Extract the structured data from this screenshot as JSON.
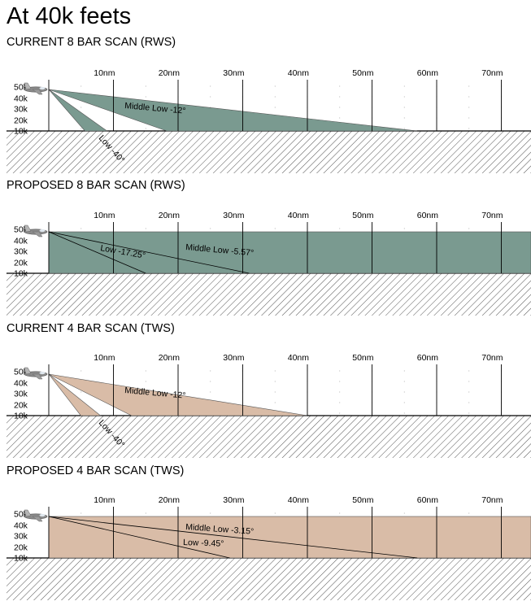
{
  "title": "At 40k feets",
  "distance_labels": [
    "10nm",
    "20nm",
    "30nm",
    "40nm",
    "50nm",
    "60nm",
    "70nm"
  ],
  "altitude_labels": [
    "50k",
    "40k",
    "30k",
    "20k",
    "10k"
  ],
  "colors": {
    "rws": "#7a9a90",
    "tws": "#d9bca7",
    "ground_hatch": "#555555"
  },
  "aircraft_icon": "fighter-jet-icon",
  "panels": [
    {
      "id": "current-8-bar-rws",
      "title": "CURRENT 8 BAR SCAN (RWS)",
      "mode": "rws",
      "kind": "wedges",
      "beams": [
        {
          "label": "Middle Low -12°",
          "ground_range_nm": 57
        },
        {
          "label": "Low -40°",
          "ground_range_nm": 9
        }
      ]
    },
    {
      "id": "proposed-8-bar-rws",
      "title": "PROPOSED 8 BAR SCAN (RWS)",
      "mode": "rws",
      "kind": "coverage",
      "beams": [
        {
          "label": "Middle Low -5.57°",
          "ground_range_nm": 31
        },
        {
          "label": "Low -17.25°",
          "ground_range_nm": 15
        }
      ]
    },
    {
      "id": "current-4-bar-tws",
      "title": "CURRENT 4 BAR SCAN (TWS)",
      "mode": "tws",
      "kind": "wedges",
      "beams": [
        {
          "label": "Middle Low -12°",
          "ground_range_nm": 40
        },
        {
          "label": "Low -40°",
          "ground_range_nm": 8
        }
      ]
    },
    {
      "id": "proposed-4-bar-tws",
      "title": "PROPOSED 4 BAR SCAN (TWS)",
      "mode": "tws",
      "kind": "coverage",
      "beams": [
        {
          "label": "Middle Low -3.15°",
          "ground_range_nm": 57
        },
        {
          "label": "Low -9.45°",
          "ground_range_nm": 28
        }
      ]
    }
  ]
}
